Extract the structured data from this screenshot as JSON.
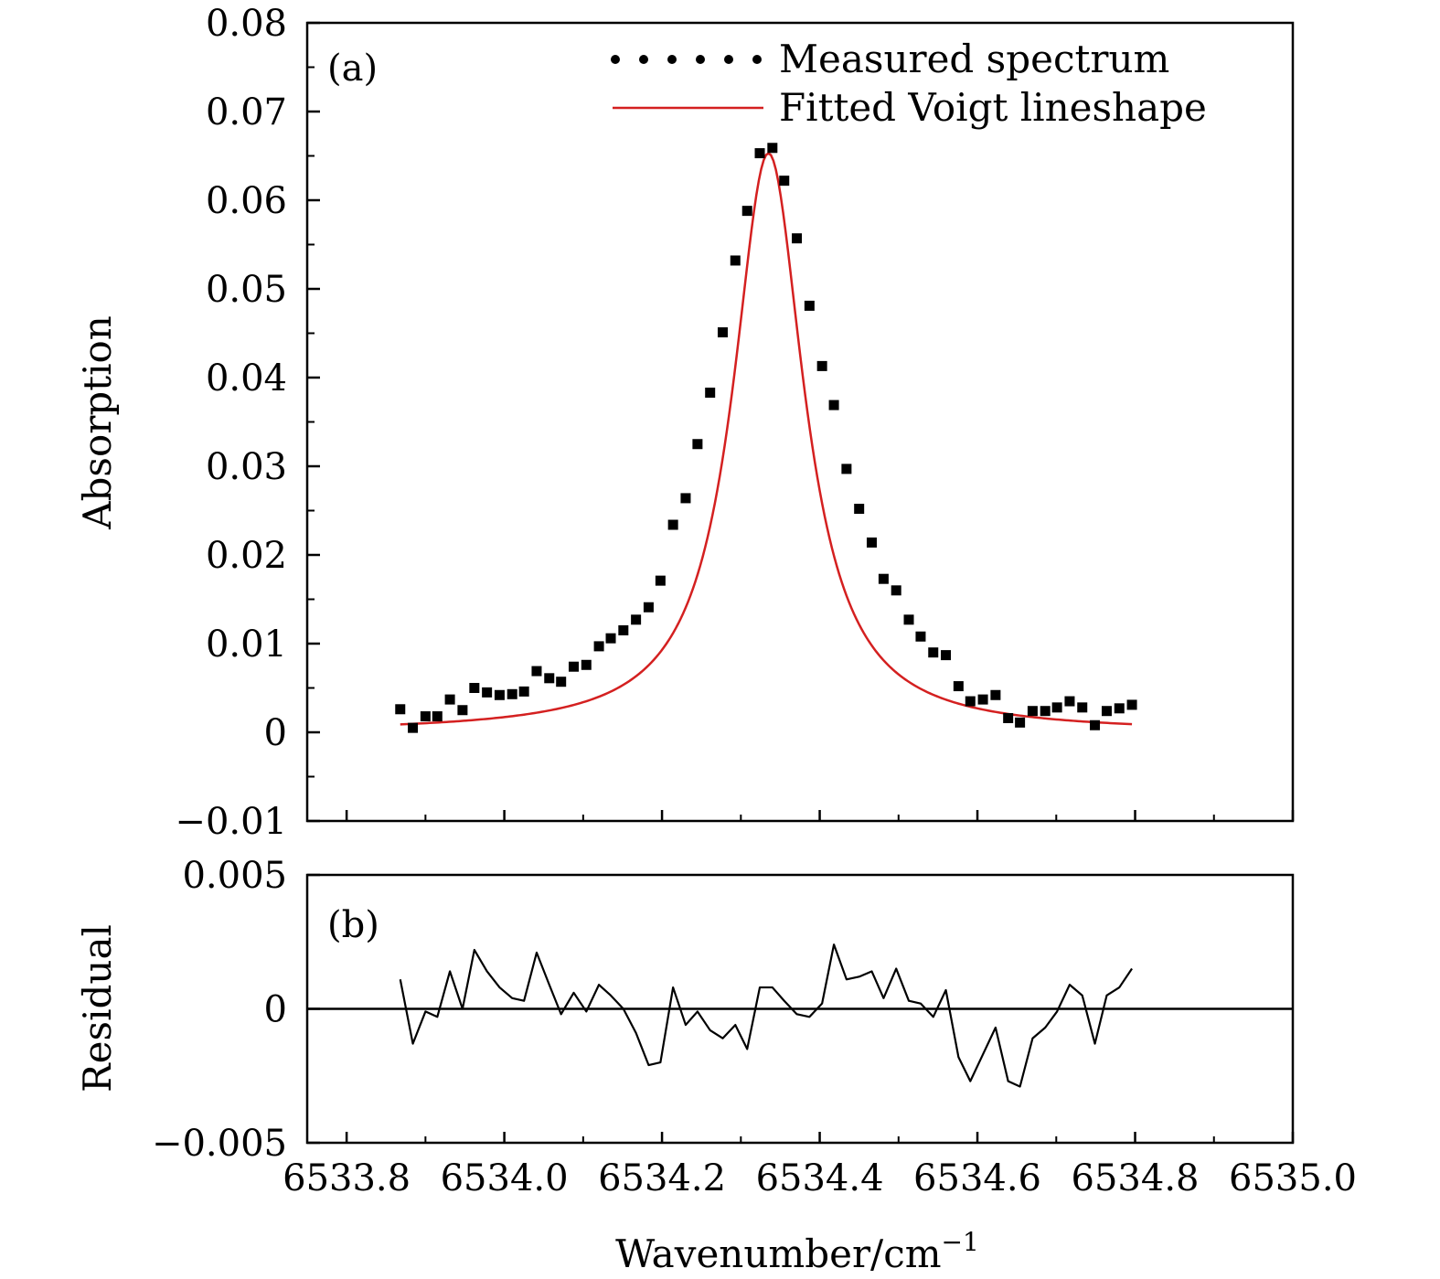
{
  "chart_data": [
    {
      "type": "scatter",
      "panel_label": "(a)",
      "ylabel": "Absorption",
      "xlim": [
        6533.75,
        6535.0
      ],
      "ylim": [
        -0.01,
        0.08
      ],
      "x_ticks": [
        "6533.8",
        "6534.0",
        "6534.2",
        "6534.4",
        "6534.6",
        "6534.8",
        "6535.0"
      ],
      "y_ticks": [
        "0.08",
        "0.07",
        "0.06",
        "0.05",
        "0.04",
        "0.03",
        "0.02",
        "0.01",
        "0",
        "−0.01"
      ],
      "legend": {
        "position": "top-right",
        "measured": "Measured spectrum",
        "fitted": "Fitted Voigt lineshape"
      },
      "colors": {
        "measured": "#000000",
        "fitted": "#d42020"
      },
      "series": [
        {
          "name": "Measured spectrum",
          "x": [
            6533.868,
            6533.884,
            6533.9,
            6533.915,
            6533.931,
            6533.947,
            6533.962,
            6533.978,
            6533.994,
            6534.01,
            6534.025,
            6534.041,
            6534.057,
            6534.072,
            6534.088,
            6534.104,
            6534.12,
            6534.135,
            6534.151,
            6534.167,
            6534.183,
            6534.198,
            6534.214,
            6534.23,
            6534.245,
            6534.261,
            6534.277,
            6534.293,
            6534.308,
            6534.324,
            6534.34,
            6534.355,
            6534.371,
            6534.387,
            6534.403,
            6534.418,
            6534.434,
            6534.45,
            6534.466,
            6534.481,
            6534.497,
            6534.513,
            6534.528,
            6534.544,
            6534.56,
            6534.576,
            6534.591,
            6534.607,
            6534.623,
            6534.639,
            6534.654,
            6534.67,
            6534.686,
            6534.701,
            6534.717,
            6534.733,
            6534.749,
            6534.764,
            6534.78,
            6534.796
          ],
          "y": [
            0.0026,
            0.0005,
            0.0018,
            0.0018,
            0.0037,
            0.0025,
            0.005,
            0.0045,
            0.0042,
            0.0043,
            0.0046,
            0.0069,
            0.0061,
            0.0057,
            0.0074,
            0.0076,
            0.0097,
            0.0106,
            0.0115,
            0.0127,
            0.0141,
            0.0171,
            0.0234,
            0.0264,
            0.0325,
            0.0383,
            0.0451,
            0.0532,
            0.0588,
            0.0653,
            0.0659,
            0.0622,
            0.0557,
            0.0481,
            0.0413,
            0.0369,
            0.0297,
            0.0252,
            0.0214,
            0.0173,
            0.016,
            0.0127,
            0.0108,
            0.009,
            0.0087,
            0.0052,
            0.0035,
            0.0037,
            0.0042,
            0.0016,
            0.0011,
            0.0024,
            0.0024,
            0.0028,
            0.0035,
            0.0028,
            0.0008,
            0.0024,
            0.0027,
            0.0031
          ]
        },
        {
          "name": "Fitted Voigt lineshape",
          "model": "lorentzian",
          "center": 6534.335,
          "peak": 0.0653,
          "hwhm": 0.055,
          "x_range": [
            6533.868,
            6534.796
          ]
        }
      ]
    },
    {
      "type": "line",
      "panel_label": "(b)",
      "xlabel": "Wavenumber/cm",
      "xlabel_sup": "−1",
      "ylabel": "Residual",
      "xlim": [
        6533.75,
        6535.0
      ],
      "ylim": [
        -0.005,
        0.005
      ],
      "y_ticks": [
        "0.005",
        "0",
        "−0.005"
      ],
      "reference_line": 0,
      "series": [
        {
          "name": "Residual",
          "x": [
            6533.868,
            6533.884,
            6533.9,
            6533.915,
            6533.931,
            6533.947,
            6533.962,
            6533.978,
            6533.994,
            6534.01,
            6534.025,
            6534.041,
            6534.057,
            6534.072,
            6534.088,
            6534.104,
            6534.12,
            6534.135,
            6534.151,
            6534.167,
            6534.183,
            6534.198,
            6534.214,
            6534.23,
            6534.245,
            6534.261,
            6534.277,
            6534.293,
            6534.308,
            6534.324,
            6534.34,
            6534.355,
            6534.371,
            6534.387,
            6534.403,
            6534.418,
            6534.434,
            6534.45,
            6534.466,
            6534.481,
            6534.497,
            6534.513,
            6534.528,
            6534.544,
            6534.56,
            6534.576,
            6534.591,
            6534.607,
            6534.623,
            6534.639,
            6534.654,
            6534.67,
            6534.686,
            6534.701,
            6534.717,
            6534.733,
            6534.749,
            6534.764,
            6534.78,
            6534.796
          ],
          "y": [
            0.0011,
            -0.0013,
            -0.0001,
            -0.0003,
            0.0014,
            0.0,
            0.0022,
            0.0014,
            0.0008,
            0.0004,
            0.0003,
            0.0021,
            0.0009,
            -0.0002,
            0.0006,
            -0.0001,
            0.0009,
            0.0005,
            0.0,
            -0.0009,
            -0.0021,
            -0.002,
            0.0008,
            -0.0006,
            -0.0001,
            -0.0008,
            -0.0011,
            -0.0006,
            -0.0015,
            0.0008,
            0.0008,
            0.0003,
            -0.0002,
            -0.0003,
            0.0002,
            0.0024,
            0.0011,
            0.0012,
            0.0014,
            0.0004,
            0.0015,
            0.0003,
            0.0002,
            -0.0003,
            0.0007,
            -0.0018,
            -0.0027,
            -0.0017,
            -0.0007,
            -0.0027,
            -0.0029,
            -0.0011,
            -0.0007,
            -0.0001,
            0.0009,
            0.0005,
            -0.0013,
            0.0005,
            0.0008,
            0.0015
          ]
        }
      ]
    }
  ]
}
